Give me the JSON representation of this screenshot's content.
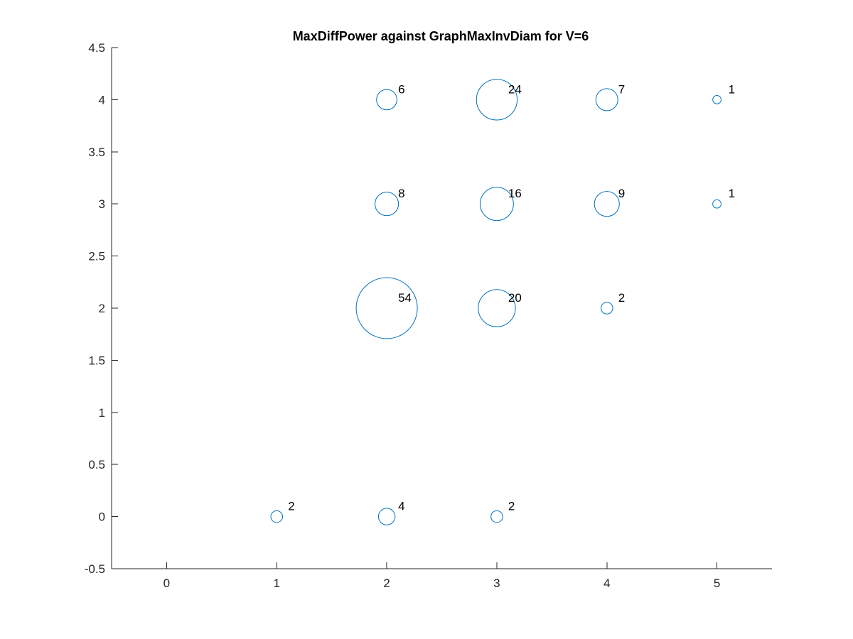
{
  "chart_data": {
    "type": "scatter",
    "title": "MaxDiffPower against GraphMaxInvDiam for V=6",
    "xlabel": "",
    "ylabel": "",
    "xlim": [
      -0.5,
      5.5
    ],
    "ylim": [
      -0.5,
      4.5
    ],
    "x_ticks": [
      0,
      1,
      2,
      3,
      4,
      5
    ],
    "x_tick_labels": [
      "0",
      "1",
      "2",
      "3",
      "4",
      "5"
    ],
    "y_ticks": [
      -0.5,
      0,
      0.5,
      1,
      1.5,
      2,
      2.5,
      3,
      3.5,
      4,
      4.5
    ],
    "y_tick_labels": [
      "-0.5",
      "0",
      "0.5",
      "1",
      "1.5",
      "2",
      "2.5",
      "3",
      "3.5",
      "4",
      "4.5"
    ],
    "grid": false,
    "marker": "open-circle-sized-by-count",
    "marker_color": "#0072BD",
    "points": [
      {
        "x": 1,
        "y": 0,
        "count": 2,
        "label": "2"
      },
      {
        "x": 2,
        "y": 0,
        "count": 4,
        "label": "4"
      },
      {
        "x": 3,
        "y": 0,
        "count": 2,
        "label": "2"
      },
      {
        "x": 2,
        "y": 2,
        "count": 54,
        "label": "54"
      },
      {
        "x": 3,
        "y": 2,
        "count": 20,
        "label": "20"
      },
      {
        "x": 4,
        "y": 2,
        "count": 2,
        "label": "2"
      },
      {
        "x": 2,
        "y": 3,
        "count": 8,
        "label": "8"
      },
      {
        "x": 3,
        "y": 3,
        "count": 16,
        "label": "16"
      },
      {
        "x": 4,
        "y": 3,
        "count": 9,
        "label": "9"
      },
      {
        "x": 5,
        "y": 3,
        "count": 1,
        "label": "1"
      },
      {
        "x": 2,
        "y": 4,
        "count": 6,
        "label": "6"
      },
      {
        "x": 3,
        "y": 4,
        "count": 24,
        "label": "24"
      },
      {
        "x": 4,
        "y": 4,
        "count": 7,
        "label": "7"
      },
      {
        "x": 5,
        "y": 4,
        "count": 1,
        "label": "1"
      }
    ]
  }
}
